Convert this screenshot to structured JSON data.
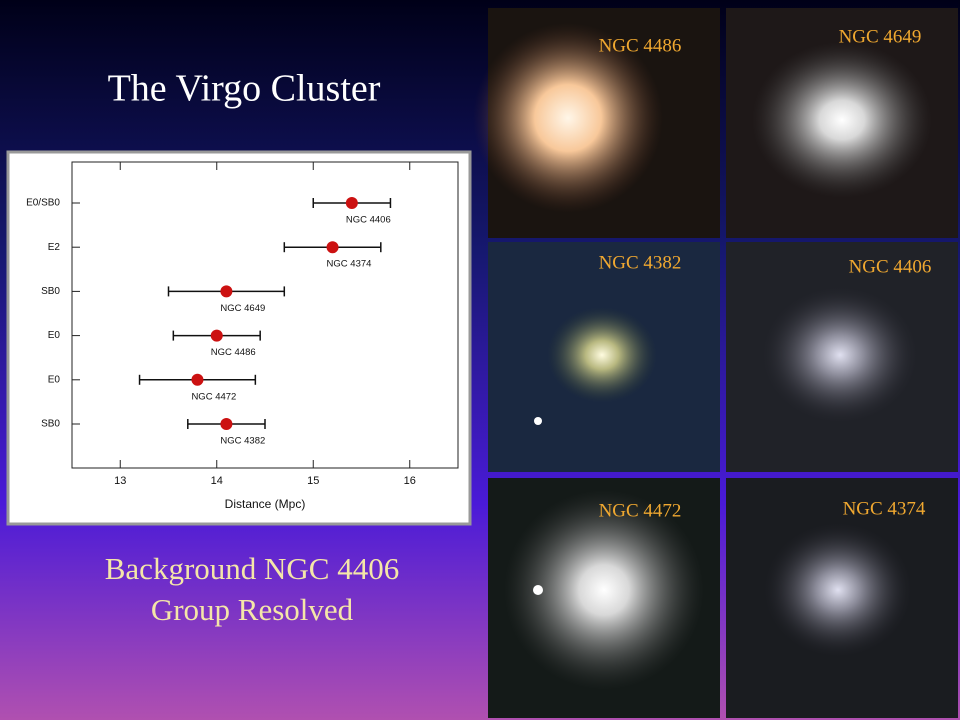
{
  "title": "The Virgo Cluster",
  "chart_data": {
    "type": "errorbar",
    "categories": [
      "E0/SB0",
      "E2",
      "SB0",
      "E0",
      "E0",
      "SB0"
    ],
    "values": [
      15.4,
      15.2,
      14.1,
      14.0,
      13.8,
      14.1
    ],
    "errors": [
      0.4,
      0.5,
      0.6,
      0.45,
      0.6,
      0.4
    ],
    "point_labels": [
      "NGC 4406",
      "NGC 4374",
      "NGC 4649",
      "NGC 4486",
      "NGC 4472",
      "NGC 4382"
    ],
    "xlabel": "Distance (Mpc)",
    "xlim": [
      12.5,
      16.5
    ],
    "xticks": [
      13,
      14,
      15,
      16
    ],
    "color": "#cc1111"
  },
  "caption": [
    "Background NGC 4406",
    "Group Resolved"
  ],
  "panels": [
    "NGC 4486",
    "NGC 4649",
    "NGC 4382",
    "NGC 4406",
    "NGC 4472",
    "NGC 4374"
  ]
}
